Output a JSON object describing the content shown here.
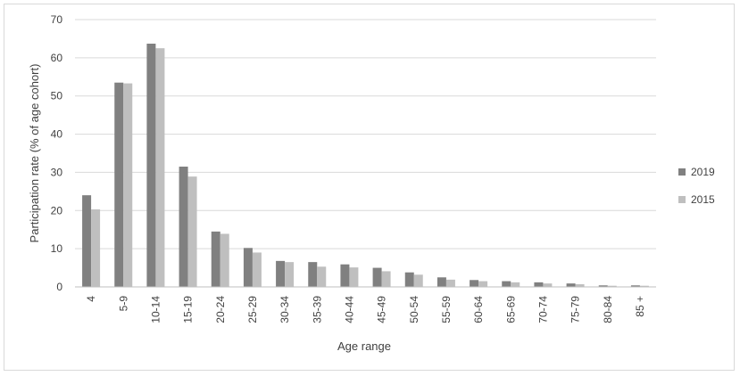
{
  "chart_data": {
    "type": "bar",
    "title": "",
    "xlabel": "Age range",
    "ylabel": "Participation rate (% of age cohort)",
    "ylim": [
      0,
      70
    ],
    "yticks": [
      0,
      10,
      20,
      30,
      40,
      50,
      60,
      70
    ],
    "grid": true,
    "legend_position": "right",
    "categories": [
      "4",
      "5-9",
      "10-14",
      "15-19",
      "20-24",
      "25-29",
      "30-34",
      "35-39",
      "40-44",
      "45-49",
      "50-54",
      "55-59",
      "60-64",
      "65-69",
      "70-74",
      "75-79",
      "80-84",
      "85 +"
    ],
    "series": [
      {
        "name": "2019",
        "color": "#808080",
        "values": [
          24,
          53.5,
          63.7,
          31.5,
          14.5,
          10.2,
          6.8,
          6.5,
          5.9,
          5.0,
          3.8,
          2.5,
          1.8,
          1.5,
          1.2,
          0.9,
          0.4,
          0.4
        ]
      },
      {
        "name": "2015",
        "color": "#bfbfbf",
        "values": [
          20.3,
          53.3,
          62.5,
          28.9,
          13.9,
          9.0,
          6.5,
          5.3,
          5.1,
          4.1,
          3.2,
          1.9,
          1.5,
          1.2,
          0.9,
          0.7,
          0.3,
          0.3
        ]
      }
    ]
  }
}
